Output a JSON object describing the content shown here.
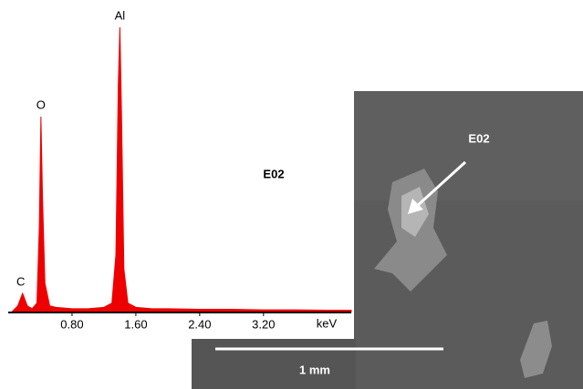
{
  "chart_data": {
    "type": "area",
    "color": "#ee0000",
    "xlabel": "keV",
    "x": [
      0.05,
      0.12,
      0.18,
      0.24,
      0.3,
      0.36,
      0.39,
      0.41,
      0.43,
      0.46,
      0.52,
      0.6,
      0.8,
      1.0,
      1.2,
      1.3,
      1.35,
      1.38,
      1.4,
      1.42,
      1.45,
      1.5,
      1.6,
      1.8,
      2.0,
      2.4,
      2.8,
      3.2,
      3.6,
      4.0,
      4.3
    ],
    "values": [
      0,
      2,
      6.4,
      2,
      1,
      3,
      30,
      68.6,
      40,
      10,
      2,
      1.5,
      1,
      1,
      1.5,
      3,
      20,
      80,
      100,
      70,
      15,
      3,
      1.5,
      1,
      1,
      0.8,
      0.8,
      0.6,
      0.6,
      0.5,
      0.5
    ],
    "xlim": [
      0,
      4.3
    ],
    "ylim": [
      0,
      100
    ],
    "xticks": [
      {
        "value": 0.8,
        "label": "0.80"
      },
      {
        "value": 1.6,
        "label": "1.60"
      },
      {
        "value": 2.4,
        "label": "2.40"
      },
      {
        "value": 3.2,
        "label": "3.20"
      }
    ],
    "annotations": [
      {
        "text": "C",
        "x": 0.18
      },
      {
        "text": "O",
        "x": 0.41
      },
      {
        "text": "Al",
        "x": 1.4
      }
    ],
    "label": "E02"
  },
  "image": {
    "label": "E02",
    "scale_bar": "1 mm"
  }
}
